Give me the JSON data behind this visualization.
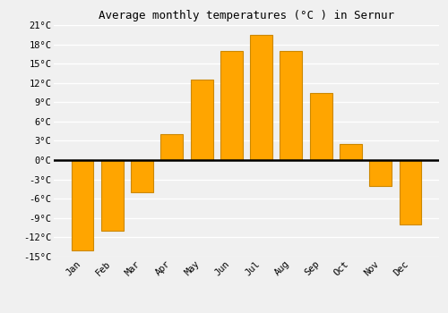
{
  "title": "Average monthly temperatures (°C ) in Sernur",
  "months": [
    "Jan",
    "Feb",
    "Mar",
    "Apr",
    "May",
    "Jun",
    "Jul",
    "Aug",
    "Sep",
    "Oct",
    "Nov",
    "Dec"
  ],
  "values": [
    -14,
    -11,
    -5,
    4,
    12.5,
    17,
    19.5,
    17,
    10.5,
    2.5,
    -4,
    -10
  ],
  "bar_color": "#FFA500",
  "bar_edge_color": "#CC8800",
  "ylim": [
    -15,
    21
  ],
  "yticks": [
    -15,
    -12,
    -9,
    -6,
    -3,
    0,
    3,
    6,
    9,
    12,
    15,
    18,
    21
  ],
  "ytick_labels": [
    "-15°C",
    "-12°C",
    "-9°C",
    "-6°C",
    "-3°C",
    "0°C",
    "3°C",
    "6°C",
    "9°C",
    "12°C",
    "15°C",
    "18°C",
    "21°C"
  ],
  "background_color": "#f0f0f0",
  "grid_color": "#ffffff",
  "zero_line_color": "#000000",
  "title_fontsize": 9,
  "tick_fontsize": 7.5
}
